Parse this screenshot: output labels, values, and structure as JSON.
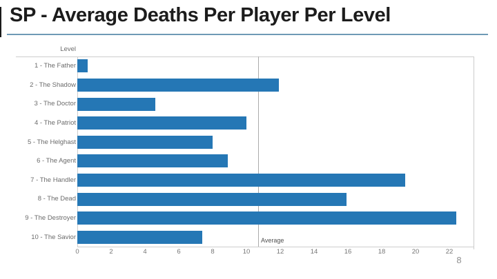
{
  "slide": {
    "title": "SP - Average Deaths Per Player Per Level",
    "title_color": "#1c1c1c",
    "underline_color": "#6e9ab5",
    "page_number": "8"
  },
  "chart_data": {
    "type": "bar",
    "orientation": "horizontal",
    "axis_title": "Level",
    "categories": [
      "1 - The Father",
      "2 - The Shadow",
      "3 - The Doctor",
      "4 - The Patriot",
      "5 - The Helghast",
      "6 - The Agent",
      "7 - The Handler",
      "8 - The Dead",
      "9 - The Destroyer",
      "10 - The Savior"
    ],
    "values": [
      0.6,
      11.9,
      4.6,
      10.0,
      8.0,
      8.9,
      19.4,
      15.9,
      22.4,
      7.4
    ],
    "x_ticks": [
      0,
      2,
      4,
      6,
      8,
      10,
      12,
      14,
      16,
      18,
      20,
      22
    ],
    "xlim": [
      0,
      23.4
    ],
    "bar_color": "#2577b5",
    "average_line": {
      "label": "Average",
      "value": 10.7
    },
    "grid": false,
    "legend": "none"
  }
}
